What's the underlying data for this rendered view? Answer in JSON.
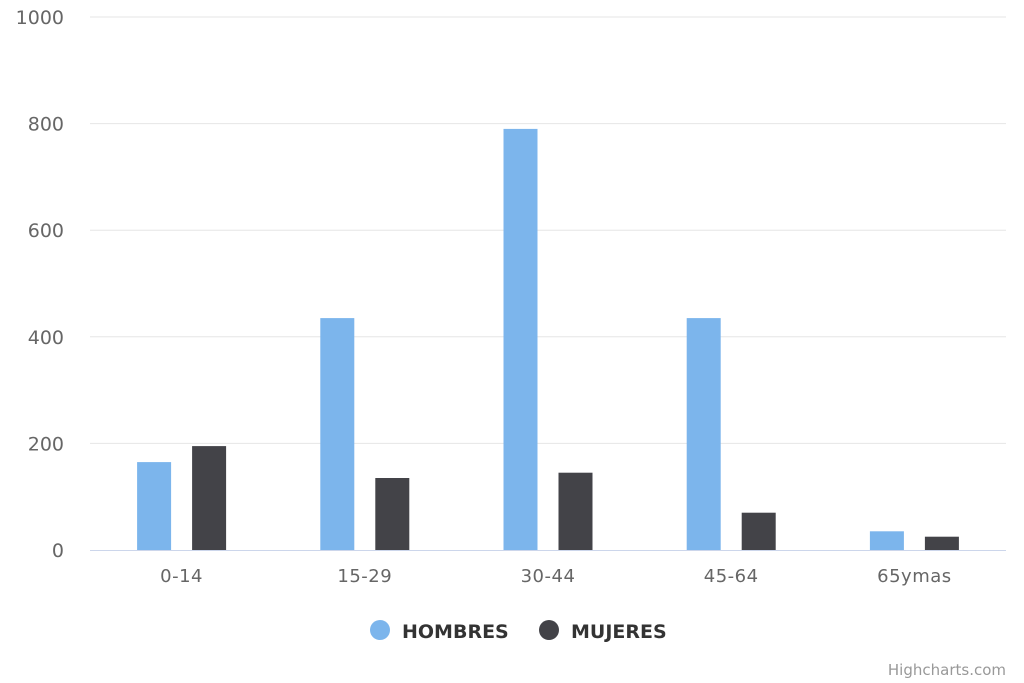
{
  "chart_data": {
    "type": "bar",
    "categories": [
      "0-14",
      "15-29",
      "30-44",
      "45-64",
      "65ymas"
    ],
    "series": [
      {
        "name": "HOMBRES",
        "color": "#7cb5ec",
        "values": [
          165,
          435,
          790,
          435,
          35
        ]
      },
      {
        "name": "MUJERES",
        "color": "#434348",
        "values": [
          195,
          135,
          145,
          70,
          25
        ]
      }
    ],
    "yticks": [
      "0",
      "200",
      "400",
      "600",
      "800",
      "1000"
    ],
    "ylim": [
      0,
      1000
    ],
    "grid": true,
    "legend_position": "bottom-center"
  },
  "credits": "Highcharts.com"
}
